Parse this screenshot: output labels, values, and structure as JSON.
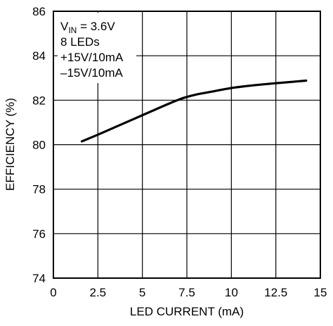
{
  "chart_data": {
    "type": "line",
    "xlabel": "LED CURRENT (mA)",
    "ylabel": "EFFICIENCY (%)",
    "xlim": [
      0,
      15
    ],
    "ylim": [
      74,
      86
    ],
    "xticks": [
      "0",
      "2.5",
      "5",
      "7.5",
      "10",
      "12.5",
      "15"
    ],
    "yticks": [
      "74",
      "76",
      "78",
      "80",
      "82",
      "84",
      "86"
    ],
    "grid": true,
    "annotation": {
      "vin_prefix": "V",
      "vin_sub": "IN",
      "vin_value": " = 3.6V",
      "lines": [
        "8 LEDs",
        "+15V/10mA",
        "–15V/10mA"
      ]
    },
    "series": [
      {
        "x": [
          1.6,
          2.5,
          3.5,
          4.5,
          5.5,
          6.5,
          7.3,
          8.0,
          9.0,
          10.0,
          11.0,
          12.0,
          13.0,
          14.2
        ],
        "y": [
          80.15,
          80.45,
          80.8,
          81.15,
          81.5,
          81.85,
          82.1,
          82.25,
          82.4,
          82.55,
          82.65,
          82.73,
          82.8,
          82.88
        ]
      }
    ]
  }
}
